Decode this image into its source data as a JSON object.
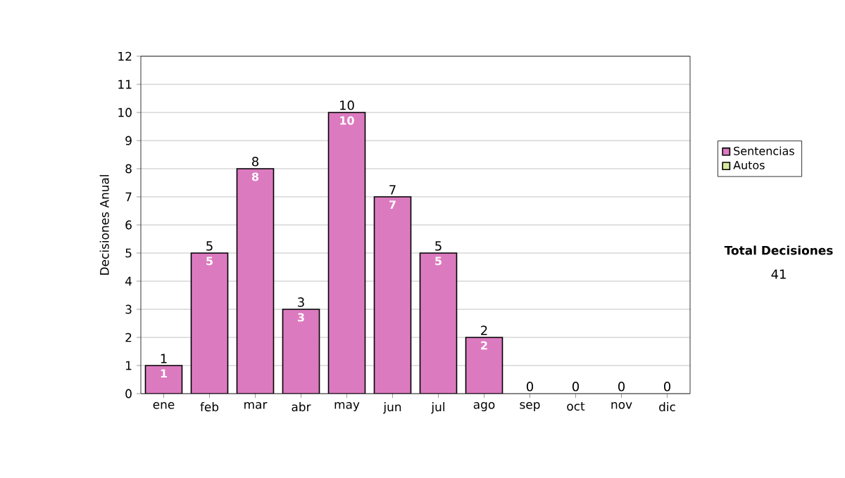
{
  "chart_data": {
    "type": "bar",
    "stacked": true,
    "ylabel": "Decisiones Anual",
    "categories": [
      "ene",
      "feb",
      "mar",
      "abr",
      "may",
      "jun",
      "jul",
      "ago",
      "sep",
      "oct",
      "nov",
      "dic"
    ],
    "series": [
      {
        "name": "Sentencias",
        "color": "#dc7ac0",
        "values": [
          1,
          5,
          8,
          3,
          10,
          7,
          5,
          2,
          0,
          0,
          0,
          0
        ],
        "value_labels": [
          "1",
          "5",
          "8",
          "3",
          "10",
          "7",
          "5",
          "2",
          null,
          null,
          null,
          null
        ]
      },
      {
        "name": "Autos",
        "color": "#d8eaa0",
        "values": [
          0,
          0,
          0,
          0,
          0,
          0,
          0,
          0,
          0,
          0,
          0,
          0
        ]
      }
    ],
    "totals": [
      "1",
      "5",
      "8",
      "3",
      "10",
      "7",
      "5",
      "2",
      "0",
      "0",
      "0",
      "0"
    ],
    "ylim": [
      0,
      12
    ],
    "yticks": [
      0,
      1,
      2,
      3,
      4,
      5,
      6,
      7,
      8,
      9,
      10,
      11,
      12
    ],
    "grid": "y",
    "legend": "right",
    "annotations": [
      "Total Decisiones",
      "41"
    ]
  }
}
